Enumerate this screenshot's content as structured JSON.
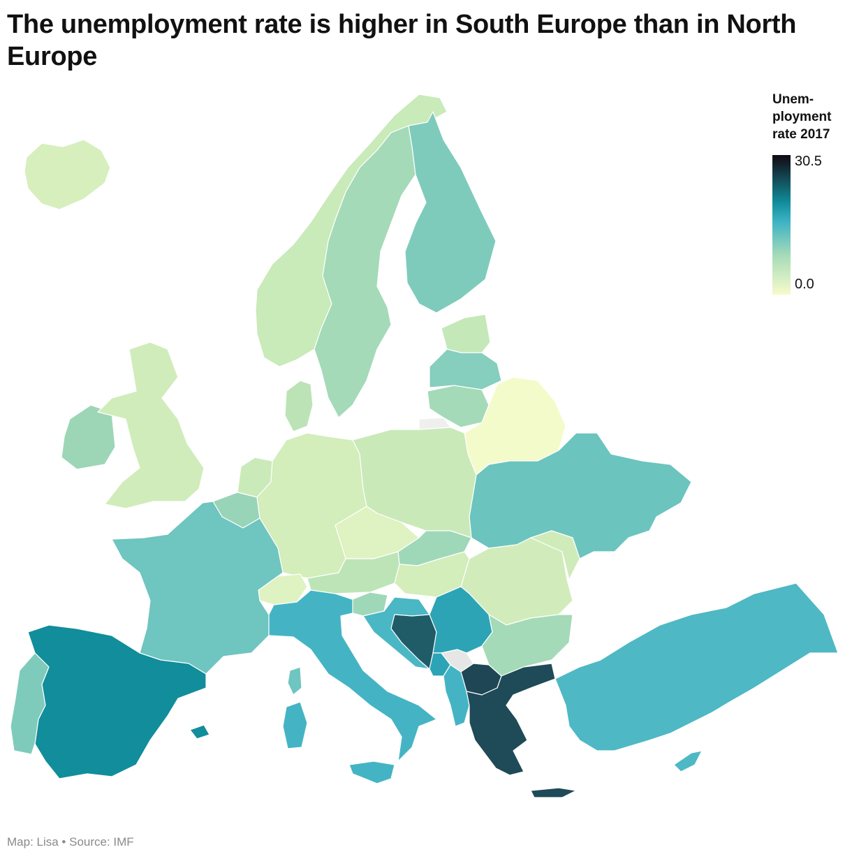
{
  "title": "The unemployment rate is higher in South Europe than in North Europe",
  "legend": {
    "title_line1": "Unem-",
    "title_line2": "ployment",
    "title_line3": "rate 2017",
    "max_label": "30.5",
    "min_label": "0.0",
    "color_low": "#f7fbcc",
    "color_mid1": "#a6dbb8",
    "color_mid2": "#3fb3c4",
    "color_mid3": "#118d9b",
    "color_high": "#120811",
    "no_data_color": "#e6e6e6"
  },
  "credit": "Map: Lisa • Source: IMF",
  "map_data": {
    "metric": "Unemployment rate 2017",
    "scale": [
      0.0,
      30.5
    ],
    "regions": [
      {
        "name": "Iceland",
        "color": "#d6efbd"
      },
      {
        "name": "Norway",
        "color": "#c9eab9"
      },
      {
        "name": "Sweden",
        "color": "#a4dab7"
      },
      {
        "name": "Finland",
        "color": "#7ecbbb"
      },
      {
        "name": "Estonia",
        "color": "#c4e8b8"
      },
      {
        "name": "Latvia",
        "color": "#86cebd"
      },
      {
        "name": "Lithuania",
        "color": "#a4dab7"
      },
      {
        "name": "Belarus",
        "color": "#f4fbca"
      },
      {
        "name": "Ukraine",
        "color": "#6bc4be"
      },
      {
        "name": "Ireland",
        "color": "#9cd6b7"
      },
      {
        "name": "United Kingdom",
        "color": "#d0ecba"
      },
      {
        "name": "Denmark",
        "color": "#bce3b6"
      },
      {
        "name": "Netherlands",
        "color": "#cbeab9"
      },
      {
        "name": "Belgium",
        "color": "#98d4b8"
      },
      {
        "name": "Germany",
        "color": "#d3edbb"
      },
      {
        "name": "Poland",
        "color": "#cae9b9"
      },
      {
        "name": "Czechia",
        "color": "#dff2c1"
      },
      {
        "name": "Slovakia",
        "color": "#9fd8b8"
      },
      {
        "name": "Austria",
        "color": "#bde4b7"
      },
      {
        "name": "Hungary",
        "color": "#d3edbb"
      },
      {
        "name": "Romania",
        "color": "#d1ecba"
      },
      {
        "name": "Moldova",
        "color": "#cfebba"
      },
      {
        "name": "Switzerland",
        "color": "#dff2c1"
      },
      {
        "name": "France",
        "color": "#6fc5bf"
      },
      {
        "name": "Italy",
        "color": "#44b4c4"
      },
      {
        "name": "Slovenia",
        "color": "#9fd8b8"
      },
      {
        "name": "Croatia",
        "color": "#4ab7c4"
      },
      {
        "name": "Bosnia and Herzegovina",
        "color": "#1f5c68"
      },
      {
        "name": "Serbia",
        "color": "#2ca4b6"
      },
      {
        "name": "Montenegro",
        "color": "#2ca4b6"
      },
      {
        "name": "Kosovo",
        "color": "#e6e6e6"
      },
      {
        "name": "North Macedonia",
        "color": "#1f4654"
      },
      {
        "name": "Albania",
        "color": "#44b4c4"
      },
      {
        "name": "Greece",
        "color": "#1f4a58"
      },
      {
        "name": "Bulgaria",
        "color": "#a4dab7"
      },
      {
        "name": "Turkey",
        "color": "#4eb8c4"
      },
      {
        "name": "Cyprus",
        "color": "#4eb8c4"
      },
      {
        "name": "Spain",
        "color": "#118d9b"
      },
      {
        "name": "Portugal",
        "color": "#7ecbbb"
      },
      {
        "name": "Kaliningrad",
        "color": "#efefef"
      }
    ]
  }
}
